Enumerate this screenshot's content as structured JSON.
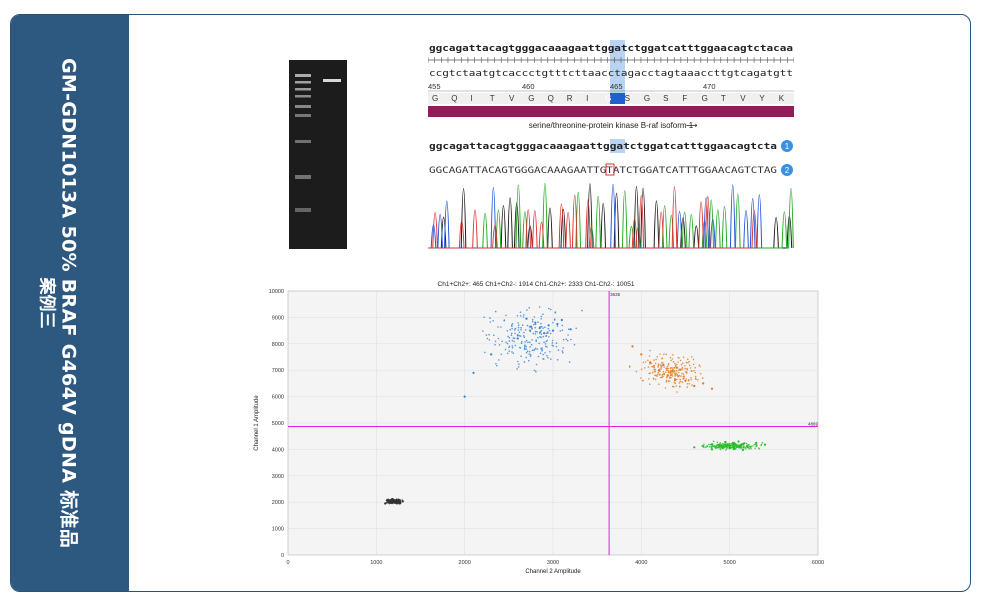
{
  "sidebar": {
    "title": "GM-GDN1013A 50% BRAF G464V gDNA 标准品",
    "case_label": "案例三"
  },
  "sequence": {
    "top_strand": "ggcagattacagtgggacaaagaattggatctggatcatttggaacagtctacaa",
    "bottom_strand": "ccgtctaatgtcaccctgtttcttaacctagacctagtaaaccttgtcagatgtt",
    "ruler_labels": [
      "455",
      "460",
      "465",
      "470"
    ],
    "amino_acids": [
      "G",
      "Q",
      "I",
      "T",
      "V",
      "G",
      "Q",
      "R",
      "I",
      "G",
      "S",
      "G",
      "S",
      "F",
      "G",
      "T",
      "V",
      "Y",
      "K"
    ],
    "feature_label": "serine/threonine-protein kinase B-raf isoform 1",
    "ref_sequence": "ggcagattacagtgggacaaagaattggatctggatcatttggaacagtcta",
    "read_sequence": "GGCAGATTACAGTGGGACAAAGAATTGTATCTGGATCATTTGGAACAGTCTAG",
    "track_badges": [
      "1",
      "2"
    ]
  },
  "chart_data": {
    "type": "scatter",
    "title": "Ch1+Ch2+: 465  Ch1+Ch2-: 1914  Ch1-Ch2+: 2333  Ch1-Ch2-: 10051",
    "xlabel": "Channel 2 Amplitude",
    "ylabel": "Channel 1 Amplitude",
    "xlim": [
      0,
      6000
    ],
    "ylim": [
      0,
      10000
    ],
    "xticks": [
      "0",
      "1000",
      "2000",
      "3000",
      "4000",
      "5000",
      "6000"
    ],
    "yticks": [
      "0",
      "1000",
      "2000",
      "3000",
      "4000",
      "5000",
      "6000",
      "7000",
      "8000",
      "9000",
      "10000"
    ],
    "threshold_x": 3635,
    "threshold_x_label": "3635",
    "threshold_y": 4869,
    "threshold_y_label": "4869",
    "series": [
      {
        "color": "#333333",
        "values": [
          [
            1150,
            2050
          ],
          [
            1200,
            2000
          ],
          [
            1250,
            2100
          ],
          [
            1100,
            1950
          ],
          [
            1300,
            2030
          ],
          [
            1180,
            2120
          ],
          [
            1230,
            1980
          ],
          [
            1120,
            2070
          ],
          [
            1270,
            1960
          ],
          [
            1210,
            2040
          ]
        ]
      },
      {
        "color": "#2f7fd6",
        "values": [
          [
            2850,
            8600
          ],
          [
            2950,
            8700
          ],
          [
            3000,
            8500
          ],
          [
            2800,
            8800
          ],
          [
            2900,
            8400
          ],
          [
            3050,
            8750
          ],
          [
            2750,
            8650
          ],
          [
            2600,
            8200
          ],
          [
            2300,
            7600
          ],
          [
            2100,
            6900
          ],
          [
            2000,
            6000
          ],
          [
            3100,
            8900
          ],
          [
            2700,
            8950
          ],
          [
            3200,
            8550
          ]
        ]
      },
      {
        "color": "#e07820",
        "values": [
          [
            4200,
            7000
          ],
          [
            4400,
            7100
          ],
          [
            4300,
            6800
          ],
          [
            4500,
            6600
          ],
          [
            4100,
            7300
          ],
          [
            4600,
            6400
          ],
          [
            4000,
            7600
          ],
          [
            3900,
            7900
          ],
          [
            4700,
            6500
          ],
          [
            4350,
            6950
          ],
          [
            4250,
            7200
          ],
          [
            4800,
            6300
          ]
        ]
      },
      {
        "color": "#22bb22",
        "values": [
          [
            4900,
            4150
          ],
          [
            5050,
            4200
          ],
          [
            5200,
            4100
          ],
          [
            4800,
            4000
          ],
          [
            5300,
            4250
          ],
          [
            5000,
            4050
          ],
          [
            5100,
            4300
          ],
          [
            4700,
            4120
          ],
          [
            5400,
            4180
          ],
          [
            4600,
            4080
          ],
          [
            5150,
            3980
          ],
          [
            4950,
            4280
          ]
        ]
      }
    ]
  }
}
